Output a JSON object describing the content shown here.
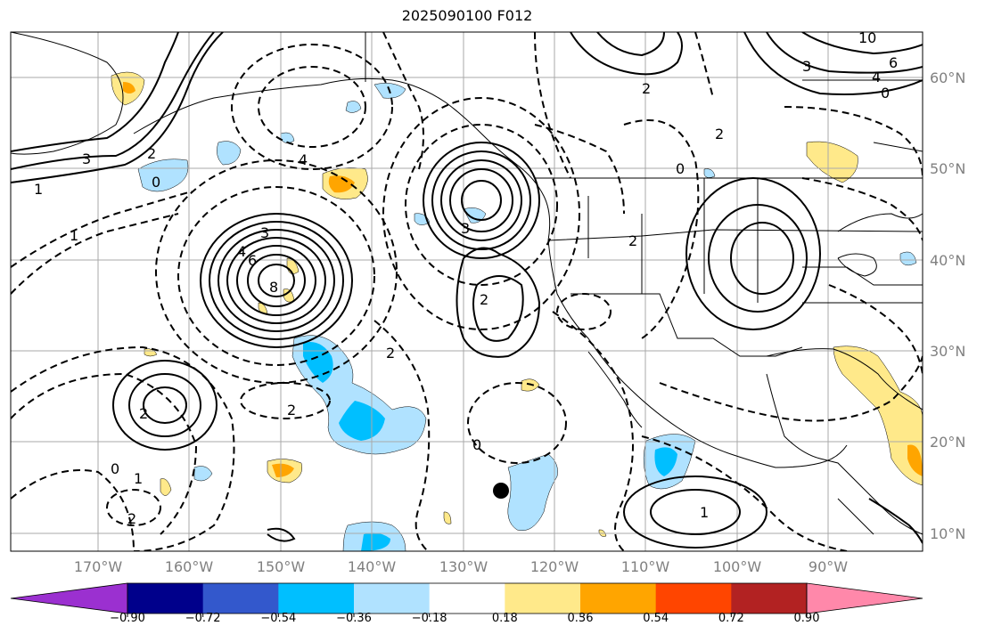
{
  "title": "2025090100 F012",
  "lat_labels": [
    "60°N",
    "50°N",
    "40°N",
    "30°N",
    "20°N",
    "10°N"
  ],
  "lon_labels": [
    "170°W",
    "160°W",
    "150°W",
    "140°W",
    "130°W",
    "120°W",
    "110°W",
    "100°W",
    "90°W"
  ],
  "colorbar": {
    "ticks": [
      "−0.90",
      "−0.72",
      "−0.54",
      "−0.36",
      "−0.18",
      "0.18",
      "0.36",
      "0.54",
      "0.72",
      "0.90"
    ],
    "colors": [
      "#9b30d0",
      "#00008b",
      "#3358cc",
      "#00bfff",
      "#b0e2ff",
      "#ffffff",
      "#ffe98a",
      "#ffa500",
      "#ff4500",
      "#b22222",
      "#ff88aa"
    ]
  },
  "contour_labels": [
    "3",
    "1",
    "2",
    "0",
    "3",
    "6",
    "8",
    "4",
    "4",
    "3",
    "2",
    "1",
    "2",
    "2",
    "0",
    "1",
    "2",
    "10",
    "6",
    "4",
    "0",
    "2",
    "2",
    "0",
    "3",
    "1",
    "2",
    "0",
    "2"
  ],
  "colors": {
    "shade_neg1": "#b0e2ff",
    "shade_neg2": "#00bfff",
    "shade_pos1": "#ffe98a",
    "shade_pos2": "#ffa500"
  }
}
